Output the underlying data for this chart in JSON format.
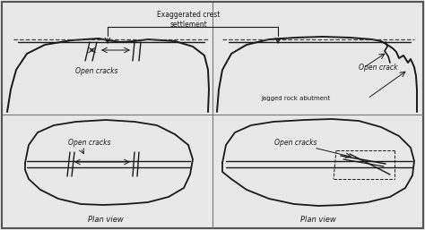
{
  "bg_color": "#e8e8e8",
  "border_color": "#555555",
  "line_color": "#1a1a1a",
  "dashed_color": "#444444",
  "title": "Exaggerated crest\nsettlement",
  "label_open_cracks_tl": "Open cracks",
  "label_open_crack_tr": "Open crack",
  "label_jagged": "Jagged rock abutment",
  "label_plan_bl": "Plan view",
  "label_plan_br": "Plan view",
  "label_open_cracks_bl": "Open cracks",
  "label_open_cracks_br": "Open cracks",
  "fig_width": 4.74,
  "fig_height": 2.57,
  "dpi": 100
}
